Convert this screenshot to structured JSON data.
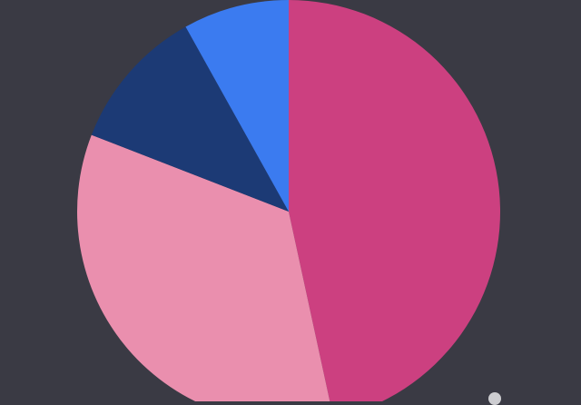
{
  "background": "#3a3a44",
  "chart_data": {
    "type": "pie",
    "start": "top",
    "direction": "clockwise",
    "slices": [
      {
        "value": 46.6,
        "color": "#cc4080"
      },
      {
        "value": 34.3,
        "color": "#ea8fae"
      },
      {
        "value": 11.0,
        "color": "#1c3a75"
      },
      {
        "value": 8.1,
        "color": "#3b7bf0"
      }
    ],
    "legend": "none"
  }
}
